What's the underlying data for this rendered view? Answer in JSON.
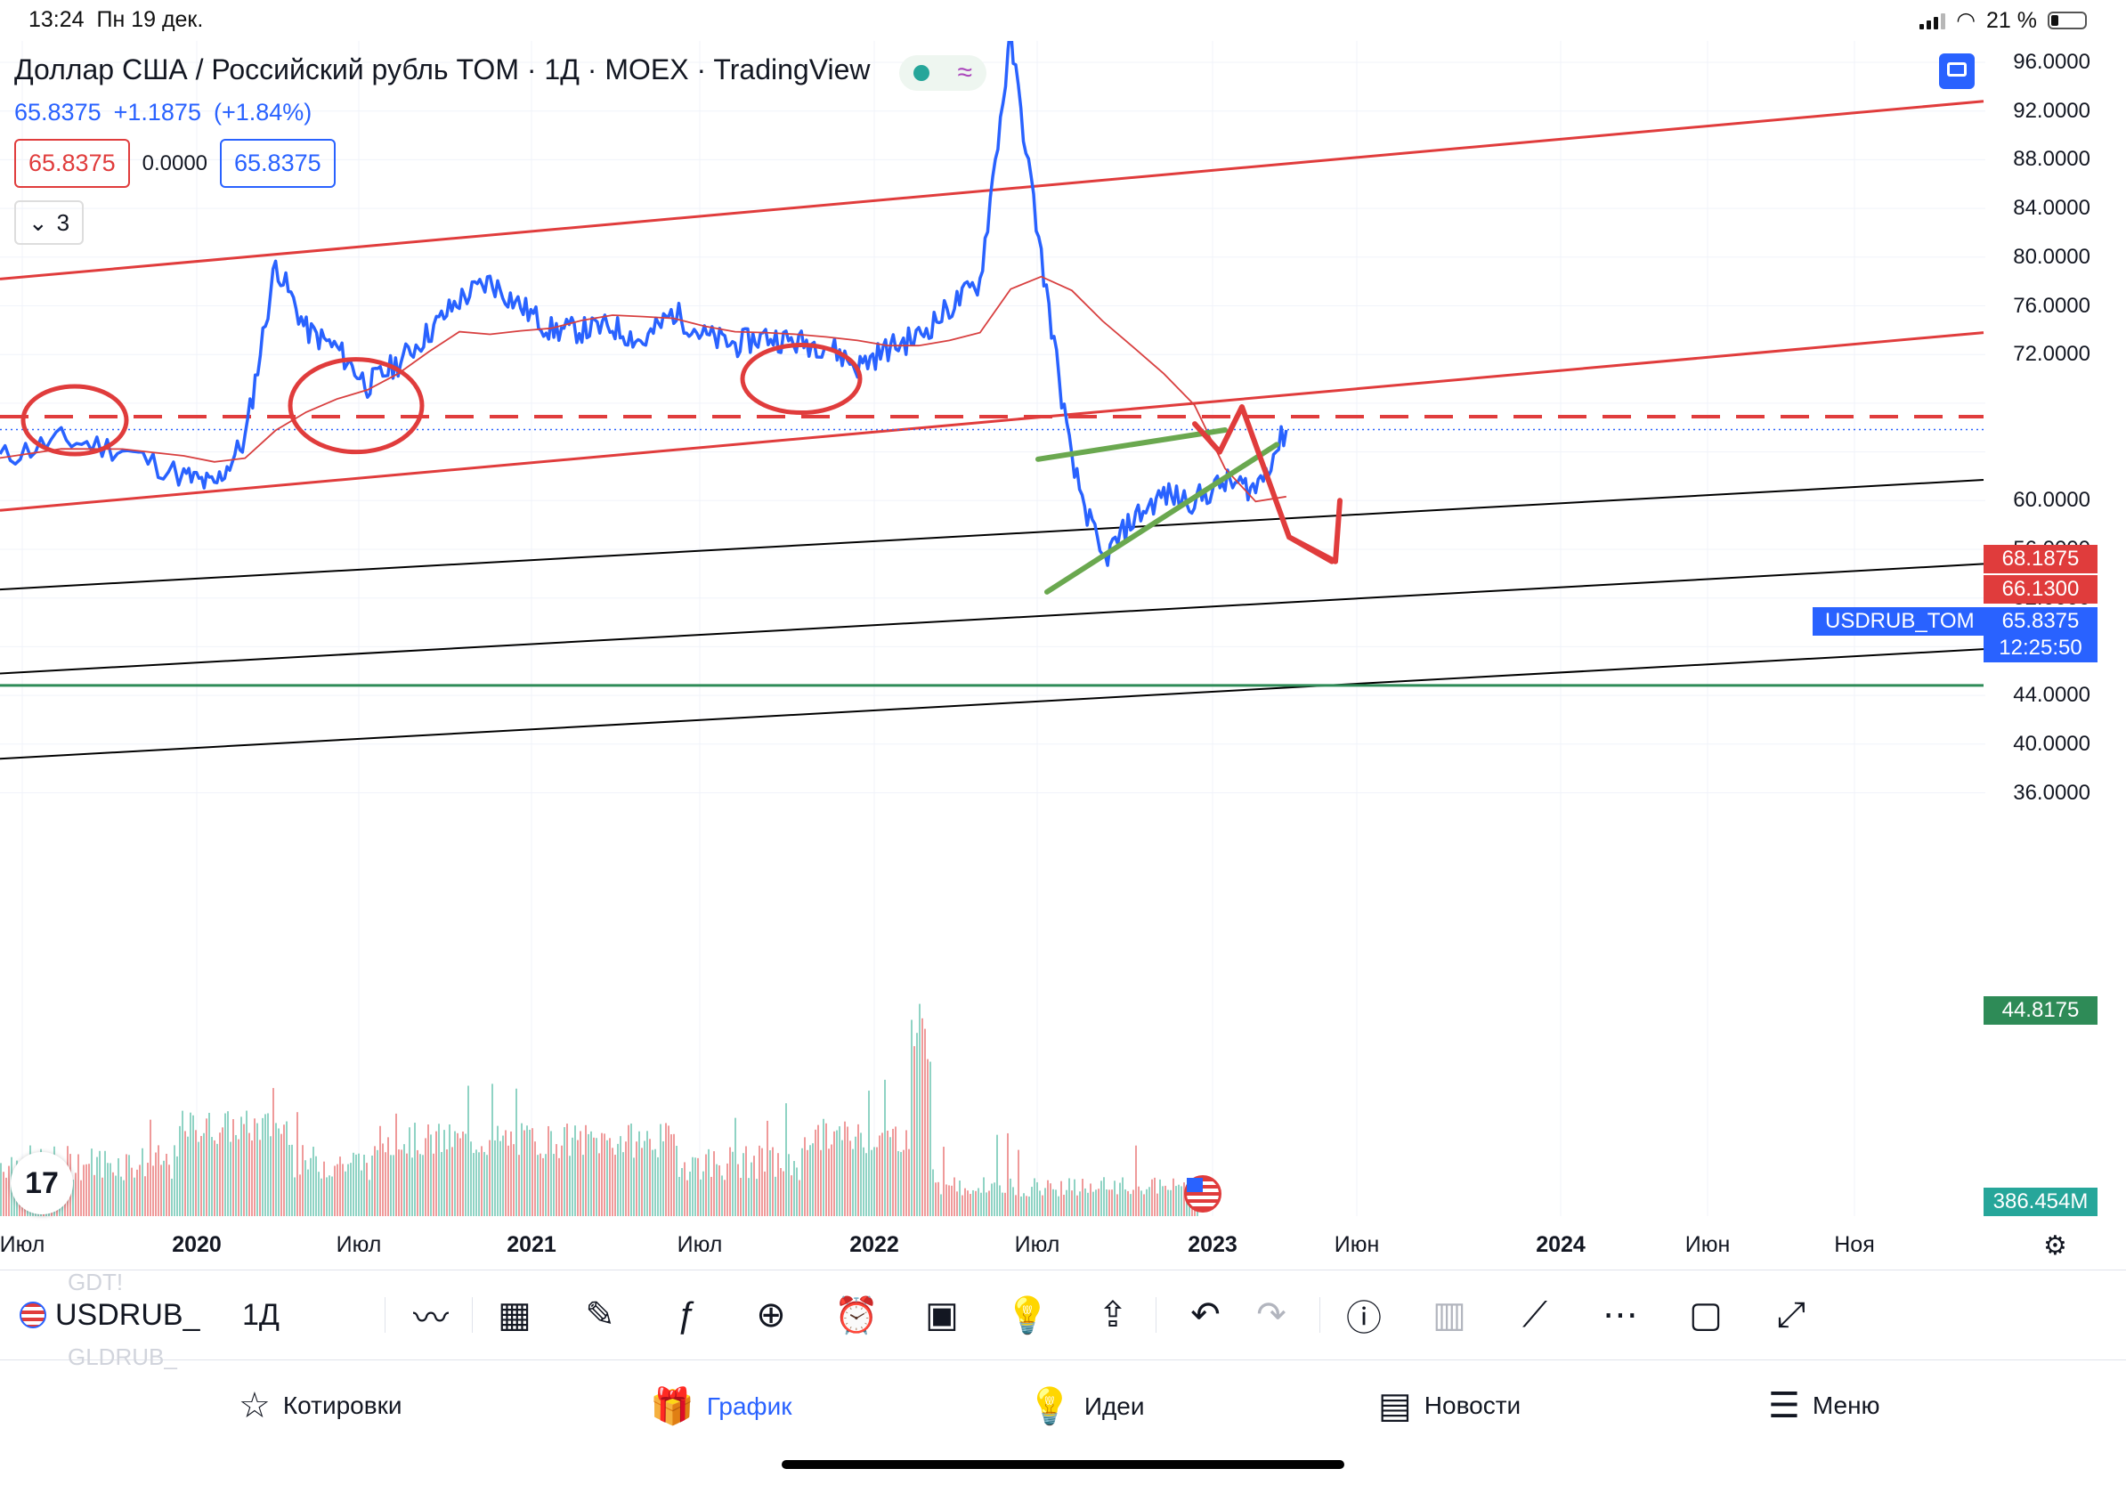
{
  "status_bar": {
    "time": "13:24",
    "date": "Пн 19 дек.",
    "battery": "21 %",
    "battery_level": 0.21
  },
  "header": {
    "title": "Доллар США / Российский рубль TOM · 1Д · MOEX · TradingView",
    "last_price": "65.8375",
    "change": "+1.1875",
    "change_pct": "(+1.84%)",
    "bid": "65.8375",
    "spread": "0.0000",
    "ask": "65.8375",
    "indicator_count": "3"
  },
  "colors": {
    "price_line": "#2962ff",
    "drawing_red": "#e03c3c",
    "drawing_green": "#6aa84f",
    "level_green": "#2e8b57",
    "ma_line": "#d84040",
    "trend_black": "#000000",
    "vol_red": "#ef9a9a",
    "vol_green": "#8fd3c4"
  },
  "price_scale": {
    "labels": [
      "96.0000",
      "92.0000",
      "88.0000",
      "84.0000",
      "80.0000",
      "76.0000",
      "72.0000",
      "60.0000",
      "56.0000",
      "52.0000",
      "48.0000",
      "44.0000",
      "40.0000",
      "36.0000"
    ],
    "tag_top": "68.1875",
    "tag_mid": "66.1300",
    "tag_last": "65.8375",
    "tag_countdown": "12:25:50",
    "tag_symbol": "USDRUB_TOM",
    "tag_level": "44.8175",
    "tag_volume": "386.454M"
  },
  "time_scale": [
    {
      "label": "Июл",
      "bold": false
    },
    {
      "label": "2020",
      "bold": true
    },
    {
      "label": "Июл",
      "bold": false
    },
    {
      "label": "2021",
      "bold": true
    },
    {
      "label": "Июл",
      "bold": false
    },
    {
      "label": "2022",
      "bold": true
    },
    {
      "label": "Июл",
      "bold": false
    },
    {
      "label": "2023",
      "bold": true
    },
    {
      "label": "Июн",
      "bold": false
    },
    {
      "label": "2024",
      "bold": true
    },
    {
      "label": "Июн",
      "bold": false
    },
    {
      "label": "Ноя",
      "bold": false
    }
  ],
  "chart_data": {
    "type": "line",
    "title": "Доллар США / Российский рубль TOM · 1Д · MOEX · TradingView",
    "ylim": [
      34,
      98
    ],
    "series": [
      {
        "name": "USDRUB_TOM",
        "x": [
          "2019-06",
          "2019-08",
          "2019-10",
          "2019-12",
          "2020-01",
          "2020-02",
          "2020-03",
          "2020-04",
          "2020-05",
          "2020-06",
          "2020-07",
          "2020-08",
          "2020-09",
          "2020-10",
          "2020-11",
          "2020-12",
          "2021-01",
          "2021-02",
          "2021-03",
          "2021-04",
          "2021-05",
          "2021-06",
          "2021-07",
          "2021-08",
          "2021-09",
          "2021-10",
          "2021-11",
          "2021-12",
          "2022-01",
          "2022-02",
          "2022-03",
          "2022-04",
          "2022-05",
          "2022-06",
          "2022-07",
          "2022-08",
          "2022-09",
          "2022-10",
          "2022-11",
          "2022-12"
        ],
        "values": [
          63.5,
          65.0,
          64.2,
          62.0,
          61.2,
          65.0,
          79.5,
          74.0,
          72.5,
          69.5,
          71.3,
          73.8,
          76.5,
          78.0,
          76.0,
          74.0,
          74.0,
          74.3,
          73.0,
          75.5,
          73.5,
          72.8,
          73.5,
          73.0,
          72.8,
          71.0,
          72.5,
          73.5,
          75.8,
          78.0,
          98.0,
          80.0,
          63.0,
          55.0,
          58.5,
          60.5,
          60.0,
          61.5,
          61.0,
          65.8
        ]
      }
    ],
    "reference_levels": [
      68.1875,
      66.13,
      65.8375,
      44.8175
    ]
  },
  "toolbar": {
    "symbol": "USDRUB_",
    "interval": "1Д",
    "ghost_above": "GDT!",
    "ghost_below": "GLDRUB_"
  },
  "bottom_nav": [
    {
      "label": "Котировки",
      "icon": "star-icon",
      "active": false
    },
    {
      "label": "График",
      "icon": "chart-gift-icon",
      "active": true
    },
    {
      "label": "Идеи",
      "icon": "lightbulb-icon",
      "active": false
    },
    {
      "label": "Новости",
      "icon": "news-icon",
      "active": false
    },
    {
      "label": "Меню",
      "icon": "menu-icon",
      "active": false
    }
  ]
}
